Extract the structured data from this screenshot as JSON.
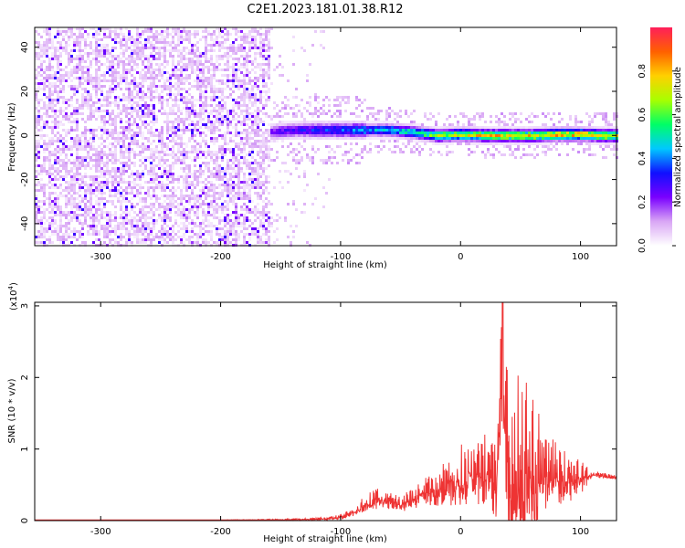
{
  "figure": {
    "title": "C2E1.2023.181.01.38.R12"
  },
  "chart_data": [
    {
      "type": "heatmap",
      "title": "C2E1.2023.181.01.38.R12",
      "xlabel": "Height of straight line (km)",
      "ylabel": "Frequency (Hz)",
      "xlim": [
        -355,
        130
      ],
      "ylim": [
        -50,
        49
      ],
      "x_ticks": [
        -300,
        -200,
        -100,
        0,
        100
      ],
      "x_tick_labels": [
        "-300",
        "-200",
        "-100",
        "0",
        "100"
      ],
      "y_ticks": [
        -40,
        -20,
        0,
        20,
        40
      ],
      "y_tick_labels": [
        "-40",
        "-20",
        "0",
        "20",
        "40"
      ],
      "colorbar": {
        "label": "Normalized spectral amplitude",
        "range": [
          0,
          1
        ],
        "ticks": [
          0.0,
          0.2,
          0.4,
          0.6,
          0.8
        ],
        "tick_labels": [
          "0.0",
          "0.2",
          "0.4",
          "0.6",
          "0.8"
        ],
        "colors": [
          "#ffffff",
          "#d9a6f5",
          "#7a00ff",
          "#1010ff",
          "#00c8ff",
          "#00ff66",
          "#a8ff00",
          "#ffd000",
          "#ff6000",
          "#ff1f5a"
        ]
      },
      "ridge_x": [
        -160,
        -140,
        -120,
        -100,
        -80,
        -60,
        -40,
        -20,
        0,
        20,
        40,
        60,
        80,
        100,
        120,
        130
      ],
      "ridge_freq": [
        2,
        3,
        3,
        3,
        3,
        3,
        2,
        0.5,
        1,
        0.5,
        0.5,
        0.5,
        1,
        1,
        0.5,
        0.5
      ],
      "ridge_amplitude": [
        0.25,
        0.3,
        0.35,
        0.4,
        0.45,
        0.5,
        0.55,
        0.7,
        0.75,
        0.8,
        0.8,
        0.8,
        0.85,
        0.85,
        0.8,
        0.75
      ],
      "noise_region_x": [
        -355,
        -160
      ],
      "noise_amplitude": 0.1
    },
    {
      "type": "line",
      "xlabel": "Height of straight line (km)",
      "ylabel": "SNR (10 * v/v)",
      "y_multiplier_label": "(x10",
      "y_multiplier_exponent": "4",
      "xlim": [
        -355,
        130
      ],
      "ylim": [
        0,
        3.05
      ],
      "x_ticks": [
        -300,
        -200,
        -100,
        0,
        100
      ],
      "x_tick_labels": [
        "-300",
        "-200",
        "-100",
        "0",
        "100"
      ],
      "y_ticks": [
        0,
        1,
        2,
        3
      ],
      "y_tick_labels": [
        "0",
        "1",
        "2",
        "3"
      ],
      "color": "#ee3333",
      "x": [
        -355,
        -300,
        -200,
        -140,
        -110,
        -100,
        -90,
        -80,
        -70,
        -60,
        -50,
        -40,
        -30,
        -20,
        -10,
        0,
        10,
        20,
        30,
        35,
        40,
        45,
        50,
        55,
        60,
        65,
        70,
        80,
        90,
        100,
        110,
        120,
        130
      ],
      "y": [
        0.01,
        0.01,
        0.01,
        0.02,
        0.04,
        0.08,
        0.15,
        0.3,
        0.4,
        0.35,
        0.3,
        0.4,
        0.55,
        0.6,
        0.75,
        0.9,
        1.0,
        1.05,
        1.15,
        3.05,
        1.3,
        1.5,
        1.7,
        1.5,
        1.3,
        1.2,
        1.05,
        0.95,
        0.8,
        0.75,
        0.68,
        0.65,
        0.62
      ],
      "peak_spread": [
        0,
        0,
        0,
        0.01,
        0.02,
        0.04,
        0.06,
        0.12,
        0.15,
        0.12,
        0.12,
        0.15,
        0.22,
        0.25,
        0.35,
        0.45,
        0.45,
        0.55,
        0.8,
        1.0,
        1.2,
        1.4,
        1.5,
        1.4,
        1.2,
        1.0,
        0.6,
        0.45,
        0.35,
        0.25,
        0.05,
        0.04,
        0.03
      ]
    }
  ]
}
